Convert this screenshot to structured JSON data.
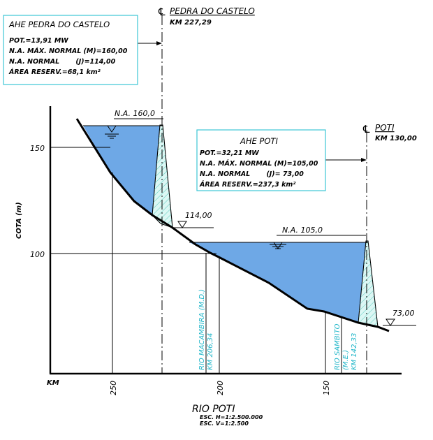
{
  "plant_upper": {
    "title": "AHE PEDRA DO CASTELO",
    "pot": "POT.=13,91 MW",
    "na_max": "N.A. MÁX. NORMAL (M)=160,00",
    "na_normal": "N.A. NORMAL       (J)=114,00",
    "area": "ÁREA RESERV.=68,1 km²",
    "axis_label": "PEDRA DO CASTELO",
    "axis_km": "KM 227,29",
    "level_label": "N.A. 160,0",
    "lower_level": "114,00"
  },
  "plant_lower": {
    "title": "AHE POTI",
    "pot": "POT.=32,21 MW",
    "na_max": "N.A. MÁX. NORMAL (M)=105,00",
    "na_normal": "N.A. NORMAL       (J)= 73,00",
    "area": "ÁREA RESERV.=237,3 km²",
    "axis_label": "POTI",
    "axis_km": "KM 130,00",
    "level_label": "N.A. 105,0",
    "lower_level": "73,00"
  },
  "centerline_symbol": "℄",
  "tributaries": [
    {
      "name": "RIO MACAMBIRA (M.D.)",
      "km": "KM 206,34"
    },
    {
      "name": "RIO SAMBITO",
      "bank": "(M.E.)",
      "km": "KM 142,33"
    }
  ],
  "axes": {
    "y_label": "COTA (m)",
    "y_ticks": [
      "150",
      "100"
    ],
    "x_unit": "KM",
    "x_ticks": [
      "250",
      "200",
      "150"
    ]
  },
  "footer": {
    "title": "RIO POTI",
    "scale_h": "ESC. H=1:2.500.000",
    "scale_v": "ESC. V=1:2.500"
  },
  "colors": {
    "water": "#6ea8e6",
    "dam_fill": "#dcf7f4",
    "box_border": "#3cc6d6",
    "tributary_text": "#1fb6c9"
  }
}
